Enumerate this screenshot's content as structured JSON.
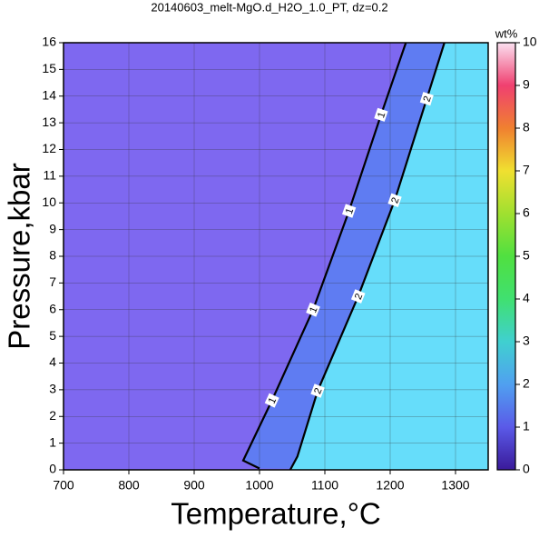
{
  "chart_data": {
    "type": "contour",
    "title": "20140603_melt-MgO.d_H2O_1.0_PT, dz=0.2",
    "xlabel": "Temperature,°C",
    "ylabel": "Pressure,kbar",
    "xlim": [
      700,
      1350
    ],
    "ylim": [
      0,
      16
    ],
    "xticks": [
      700,
      800,
      900,
      1000,
      1100,
      1200,
      1300
    ],
    "yticks": [
      0,
      1,
      2,
      3,
      4,
      5,
      6,
      7,
      8,
      9,
      10,
      11,
      12,
      13,
      14,
      15,
      16
    ],
    "grid": true,
    "background": "#7e68f0",
    "series": [
      {
        "name": "1",
        "color": "#000000",
        "fill": "#5f7cf2",
        "x": [
          1000,
          975,
          1019,
          1082,
          1137,
          1186,
          1224
        ],
        "y": [
          0.05,
          0.35,
          2.6,
          6.0,
          9.7,
          13.3,
          16
        ]
      },
      {
        "name": "2",
        "color": "#000000",
        "fill": "#66ddfa",
        "x": [
          1047,
          1058,
          1089,
          1151,
          1207,
          1256,
          1283
        ],
        "y": [
          0,
          0.5,
          2.96,
          6.5,
          10.1,
          13.9,
          16
        ]
      }
    ],
    "colorbar": {
      "label": "wt%",
      "lim": [
        0,
        10
      ],
      "ticks": [
        0,
        1,
        2,
        3,
        4,
        5,
        6,
        7,
        8,
        9,
        10
      ],
      "colors": [
        "#3a1a9a",
        "#5a5ae8",
        "#50a0f0",
        "#40d0d0",
        "#40e070",
        "#50e040",
        "#a0e030",
        "#f0e030",
        "#f08030",
        "#f04070",
        "#fbe0f0"
      ]
    }
  }
}
